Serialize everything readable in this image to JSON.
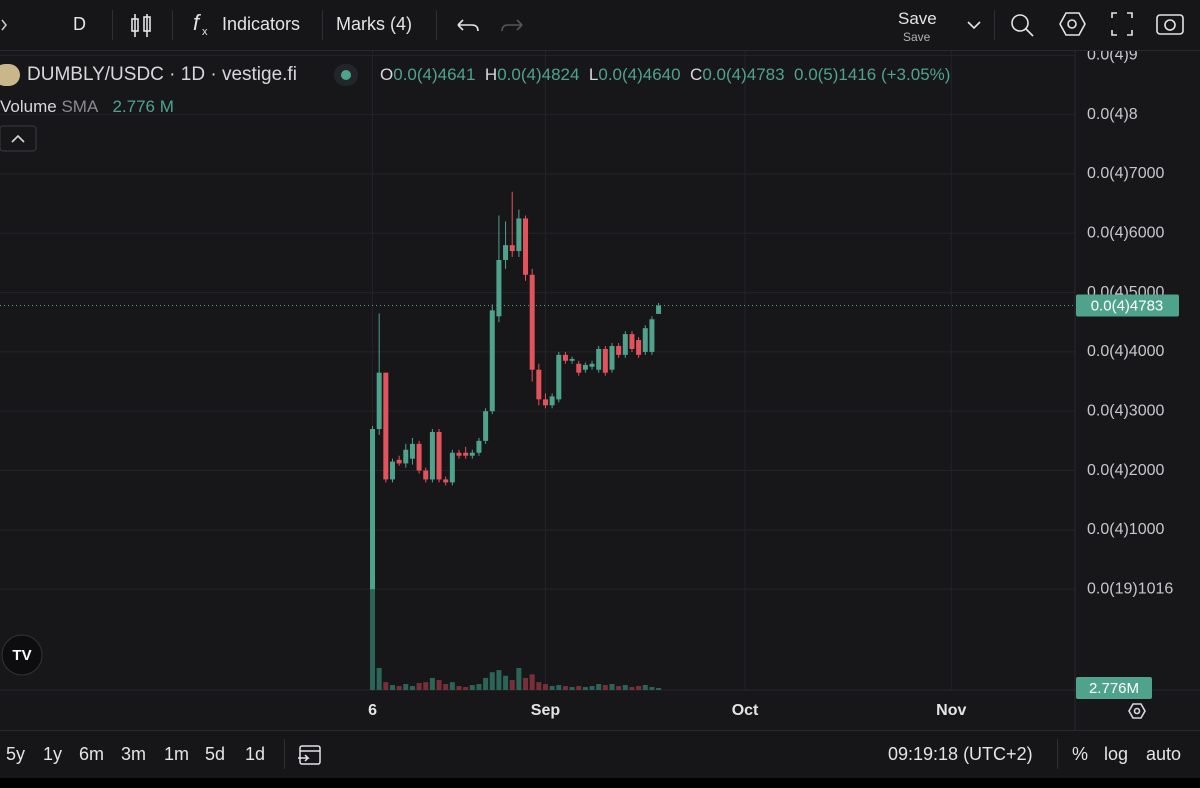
{
  "toolbar": {
    "interval": "D",
    "indicators": "Indicators",
    "marks": "Marks (4)",
    "save": "Save",
    "save_sub": "Save"
  },
  "legend": {
    "symbol": "DUMBLY/USDC · 1D · vestige.fi",
    "o_key": "O",
    "o_val": "0.0(4)4641",
    "h_key": "H",
    "h_val": "0.0(4)4824",
    "l_key": "L",
    "l_val": "0.0(4)4640",
    "c_key": "C",
    "c_val": "0.0(4)4783",
    "change": "0.0(5)1416 (+3.05%)",
    "volume": "Volume",
    "sma": "SMA",
    "volume_val": "2.776 M"
  },
  "chart_data": {
    "type": "candlestick",
    "open": [
      0,
      2.7e-05,
      3.65e-05,
      1.85e-05,
      2.18e-05,
      2.12e-05,
      2.2e-05,
      2.45e-05,
      2e-05,
      1.85e-05,
      2.65e-05,
      1.85e-05,
      1.8e-05,
      2.3e-05,
      2.3e-05,
      2.25e-05,
      2.3e-05,
      2.5e-05,
      3e-05,
      4.6e-05,
      5.55e-05,
      5.8e-05,
      5.7e-05,
      6.25e-05,
      5.3e-05,
      3.7e-05,
      3.2e-05,
      3.1e-05,
      3.2e-05,
      3.95e-05,
      3.85e-05,
      3.8e-05,
      3.7e-05,
      3.75e-05,
      3.7e-05,
      4.05e-05,
      3.7e-05,
      4.1e-05,
      3.95e-05,
      4.3e-05,
      4.2e-05,
      4e-05,
      4e-05,
      4.641e-05
    ],
    "high": [
      2.75e-05,
      4.65e-05,
      3.65e-05,
      2.2e-05,
      2.25e-05,
      2.45e-05,
      2.55e-05,
      2.5e-05,
      2.05e-05,
      2.7e-05,
      2.7e-05,
      1.9e-05,
      2.35e-05,
      2.35e-05,
      2.4e-05,
      2.35e-05,
      2.55e-05,
      3.05e-05,
      4.8e-05,
      6.3e-05,
      6.2e-05,
      6.7e-05,
      6.4e-05,
      6.3e-05,
      5.4e-05,
      3.8e-05,
      3.3e-05,
      3.3e-05,
      4e-05,
      4e-05,
      3.92e-05,
      3.85e-05,
      3.82e-05,
      3.85e-05,
      4.1e-05,
      4.1e-05,
      4.15e-05,
      4.15e-05,
      4.35e-05,
      4.35e-05,
      4.25e-05,
      4.45e-05,
      4.6e-05,
      4.824e-05
    ],
    "low": [
      0,
      2.6e-05,
      1.8e-05,
      1.8e-05,
      2.08e-05,
      2.05e-05,
      2.1e-05,
      1.95e-05,
      1.8e-05,
      1.8e-05,
      1.8e-05,
      1.75e-05,
      1.75e-05,
      2.2e-05,
      2.2e-05,
      2.2e-05,
      2.25e-05,
      2.45e-05,
      2.95e-05,
      4.5e-05,
      5.4e-05,
      5.6e-05,
      5.6e-05,
      5.2e-05,
      3.5e-05,
      3.1e-05,
      3.05e-05,
      3.05e-05,
      3.15e-05,
      3.8e-05,
      3.8e-05,
      3.6e-05,
      3.65e-05,
      3.7e-05,
      3.65e-05,
      3.6e-05,
      3.65e-05,
      3.9e-05,
      3.9e-05,
      4e-05,
      3.9e-05,
      3.95e-05,
      3.95e-05,
      4.64e-05
    ],
    "close": [
      2.7e-05,
      3.65e-05,
      1.85e-05,
      2.15e-05,
      2.12e-05,
      2.35e-05,
      2.45e-05,
      2e-05,
      1.85e-05,
      2.65e-05,
      1.85e-05,
      1.8e-05,
      2.3e-05,
      2.25e-05,
      2.25e-05,
      2.3e-05,
      2.5e-05,
      3e-05,
      4.7e-05,
      5.55e-05,
      5.8e-05,
      5.7e-05,
      6.25e-05,
      5.3e-05,
      3.7e-05,
      3.2e-05,
      3.1e-05,
      3.25e-05,
      3.95e-05,
      3.85e-05,
      3.88e-05,
      3.65e-05,
      3.78e-05,
      3.8e-05,
      4.05e-05,
      3.65e-05,
      4.1e-05,
      3.95e-05,
      4.3e-05,
      4.05e-05,
      3.95e-05,
      4.4e-05,
      4.55e-05,
      4.783e-05
    ],
    "volume": [
      158000000,
      31000000,
      11000000,
      7000000,
      5600000,
      8400000,
      5600000,
      9800000,
      11000000,
      17000000,
      14000000,
      8400000,
      11000000,
      5600000,
      4200000,
      7000000,
      8400000,
      17000000,
      25000000,
      28000000,
      20000000,
      14000000,
      31000000,
      17000000,
      22000000,
      11000000,
      8400000,
      5600000,
      7000000,
      5600000,
      4200000,
      5600000,
      4200000,
      5600000,
      8400000,
      7000000,
      8400000,
      5600000,
      7000000,
      4200000,
      5600000,
      7000000,
      4200000,
      2776000
    ],
    "up_color": "#4fa38d",
    "down_color": "#e2535c",
    "volume_up_color": "#2c6457",
    "volume_down_color": "#773038",
    "ylim": [
      -1.7e-05,
      9.09e-05
    ],
    "yticks": [
      {
        "value": 9e-05,
        "label": "0.0(4)9"
      },
      {
        "value": 8e-05,
        "label": "0.0(4)8"
      },
      {
        "value": 7e-05,
        "label": "0.0(4)7000"
      },
      {
        "value": 6e-05,
        "label": "0.0(4)6000"
      },
      {
        "value": 5e-05,
        "label": "0.0(4)5000"
      },
      {
        "value": 4e-05,
        "label": "0.0(4)4000"
      },
      {
        "value": 3e-05,
        "label": "0.0(4)3000"
      },
      {
        "value": 2e-05,
        "label": "0.0(4)2000"
      },
      {
        "value": 1e-05,
        "label": "0.0(4)1000"
      },
      {
        "value": 1.016e-20,
        "label": "0.0(19)1016"
      }
    ],
    "xlim": [
      -56,
      105.6
    ],
    "xticks": [
      {
        "value": 0,
        "label": "6"
      },
      {
        "value": 26,
        "label": "Sep"
      },
      {
        "value": 56,
        "label": "Oct"
      },
      {
        "value": 87,
        "label": "Nov"
      }
    ],
    "volume_ylim": [
      0,
      900000000
    ],
    "grid": true,
    "last_price_label": "0.0(4)4783",
    "last_volume_label": "2.776M"
  },
  "bottom_bar": {
    "ranges": [
      "5y",
      "1y",
      "6m",
      "3m",
      "1m",
      "5d",
      "1d"
    ],
    "time": "09:19:18 (UTC+2)",
    "percent": "%",
    "log": "log",
    "auto": "auto"
  }
}
